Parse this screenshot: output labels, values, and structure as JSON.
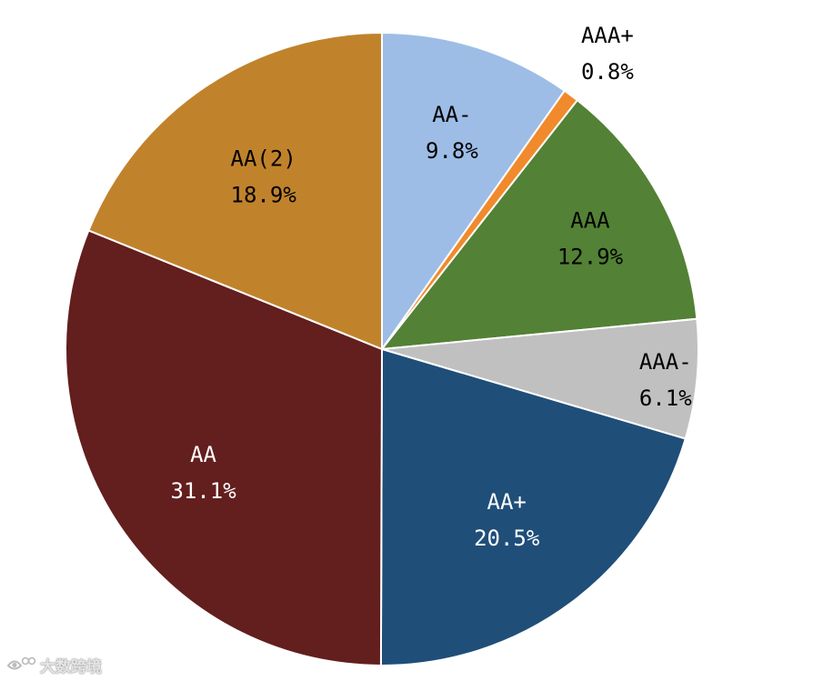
{
  "colors": {
    "background": "#ffffff",
    "slice_border": "#ffffff"
  },
  "chart_data": {
    "type": "pie",
    "title": "",
    "start_angle_deg": 0,
    "direction": "clockwise",
    "slices": [
      {
        "label": "AA-",
        "value": 9.8,
        "display": "9.8%",
        "color": "#9dbde6",
        "text_color": "#000000"
      },
      {
        "label": "AAA+",
        "value": 0.8,
        "display": "0.8%",
        "color": "#f08a2c",
        "text_color": "#000000",
        "outside_label": true
      },
      {
        "label": "AAA",
        "value": 12.9,
        "display": "12.9%",
        "color": "#538135",
        "text_color": "#000000"
      },
      {
        "label": "AAA-",
        "value": 6.1,
        "display": "6.1%",
        "color": "#c0c0c0",
        "text_color": "#000000"
      },
      {
        "label": "AA+",
        "value": 20.5,
        "display": "20.5%",
        "color": "#1f4e79",
        "text_color": "#ffffff"
      },
      {
        "label": "AA",
        "value": 31.1,
        "display": "31.1%",
        "color": "#631e1e",
        "text_color": "#ffffff"
      },
      {
        "label": "AA(2)",
        "value": 18.9,
        "display": "18.9%",
        "color": "#c0832c",
        "text_color": "#000000"
      }
    ]
  },
  "watermark": {
    "logo_icon": "eye-logo-icon",
    "text": "大数跨境"
  }
}
